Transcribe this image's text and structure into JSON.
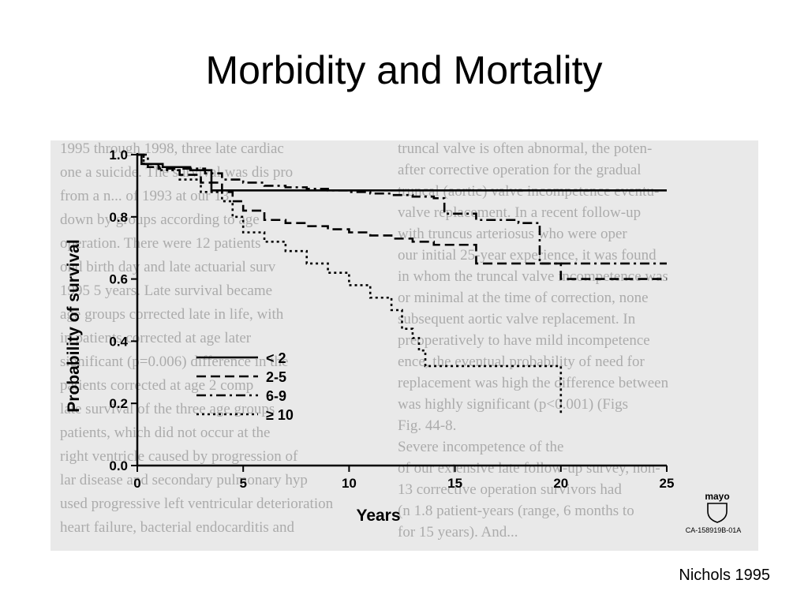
{
  "slide": {
    "title": "Morbidity and Mortality",
    "citation": "Nichols 1995"
  },
  "figure": {
    "logo_text": "mayo",
    "figure_id": "CA-158919B-01A",
    "background_text_left": [
      "1995 through 1998, three late cardiac",
      "one a suicide. The survival was dis pro",
      "from a n... of 1993 at our 13",
      "down by groups according to age",
      "operation. There were 12 patients",
      "ond birth day and late actuarial surv",
      "1995 5 years. Late survival became",
      "age groups corrected late in life, with",
      "in patients corrected at age later",
      "significant (p=0.006) difference in the",
      "patients corrected at age 2 comp",
      "late survival of the three age groups",
      "patients, which did not occur at the",
      "right ventricle caused by progression of",
      "lar disease and secondary pulmonary hyp",
      "used progressive left ventricular deterioration",
      "heart failure, bacterial endocarditis and"
    ],
    "background_text_right": [
      "truncal valve is often abnormal, the poten-",
      "after corrective operation for the gradual",
      "truncal (aortic) valve incompetence eventu-",
      "valve replacement. In a recent follow-up",
      "with truncus arteriosus who were oper",
      "our initial 25-year experience, it was found",
      "in whom the truncal valve incompetence was",
      "or minimal at the time of correction, none",
      "subsequent aortic valve replacement. In",
      "preoperatively to have mild incompetence",
      "ence, the eventual probability of need for",
      "replacement was high the difference between",
      "was highly significant (p<0.001) (Figs",
      "Fig. 44-8.",
      "Severe incompetence of the",
      "of our extensive late follow-up survey, non-",
      "13 corrective operation survivors had",
      "(n 1.8 patient-years (range, 6 months to",
      "for 15 years). And..."
    ]
  },
  "chart_data": {
    "type": "line",
    "title": "",
    "xlabel": "Years",
    "ylabel": "Probability of survival",
    "xlim": [
      0,
      25
    ],
    "ylim": [
      0,
      1.0
    ],
    "xticks": [
      0,
      5,
      10,
      15,
      20,
      25
    ],
    "yticks": [
      0.0,
      0.2,
      0.4,
      0.6,
      0.8,
      1.0
    ],
    "xtick_labels": [
      "0",
      "5",
      "10",
      "15",
      "20",
      "25"
    ],
    "ytick_labels": [
      "0.0",
      "0.2",
      "0.4",
      "0.6",
      "0.8",
      "1.0"
    ],
    "grid": false,
    "legend_position": "center-left",
    "step": true,
    "series": [
      {
        "name": "< 2",
        "style": "solid",
        "x": [
          0,
          0.2,
          1.2,
          2.5,
          3.5,
          25
        ],
        "y": [
          1.0,
          0.97,
          0.96,
          0.95,
          0.885,
          0.885
        ]
      },
      {
        "name": "2-5",
        "style": "dash",
        "x": [
          0,
          0.3,
          1,
          2,
          3,
          4,
          4.5,
          5,
          6,
          7,
          8,
          9,
          10,
          11,
          12,
          13,
          14,
          15,
          16,
          17,
          20,
          25
        ],
        "y": [
          1.0,
          0.97,
          0.955,
          0.935,
          0.91,
          0.88,
          0.85,
          0.82,
          0.79,
          0.78,
          0.77,
          0.76,
          0.75,
          0.74,
          0.73,
          0.72,
          0.71,
          0.71,
          0.65,
          0.65,
          0.6,
          0.6
        ]
      },
      {
        "name": "6-9",
        "style": "dashdot",
        "x": [
          0,
          0.5,
          2,
          3.2,
          4,
          5,
          6,
          7,
          8,
          9,
          10,
          11,
          12,
          13,
          14,
          14.5,
          16,
          18,
          19,
          20,
          25
        ],
        "y": [
          1.0,
          0.96,
          0.955,
          0.94,
          0.92,
          0.91,
          0.9,
          0.895,
          0.89,
          0.885,
          0.88,
          0.875,
          0.87,
          0.865,
          0.86,
          0.81,
          0.79,
          0.78,
          0.65,
          0.65,
          0.65
        ]
      },
      {
        "name": "≥ 10",
        "style": "dot",
        "x": [
          0,
          0.3,
          1,
          2,
          3,
          4,
          4.5,
          5,
          6,
          7,
          8,
          9,
          10,
          11,
          12,
          12.5,
          13,
          13.3,
          13.6,
          20
        ],
        "y": [
          1.0,
          0.97,
          0.95,
          0.92,
          0.88,
          0.85,
          0.8,
          0.75,
          0.72,
          0.69,
          0.65,
          0.62,
          0.58,
          0.54,
          0.5,
          0.44,
          0.41,
          0.37,
          0.32,
          0.16
        ]
      }
    ]
  }
}
